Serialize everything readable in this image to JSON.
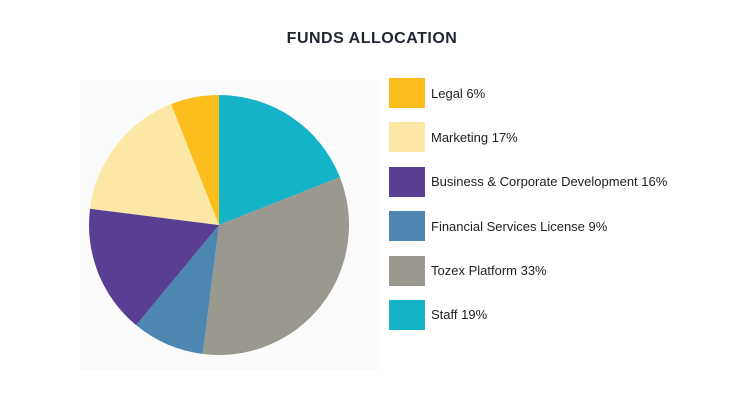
{
  "chart_data": {
    "type": "pie",
    "title": "FUNDS ALLOCATION",
    "slices": [
      {
        "label": "Staff 19%",
        "value": 19,
        "color": "#14b3c8"
      },
      {
        "label": "Tozex Platform 33%",
        "value": 33,
        "color": "#9b988f"
      },
      {
        "label": "Financial Services License 9%",
        "value": 9,
        "color": "#4e86b2"
      },
      {
        "label": "Business & Corporate Development 16%",
        "value": 16,
        "color": "#583f93"
      },
      {
        "label": "Marketing 17%",
        "value": 17,
        "color": "#fde7a5"
      },
      {
        "label": "Legal 6%",
        "value": 6,
        "color": "#fbbe1d"
      }
    ],
    "legend_order": [
      5,
      4,
      3,
      2,
      1,
      0
    ],
    "legend_position": "right",
    "start_angle": "12 o'clock",
    "direction": "clockwise"
  }
}
